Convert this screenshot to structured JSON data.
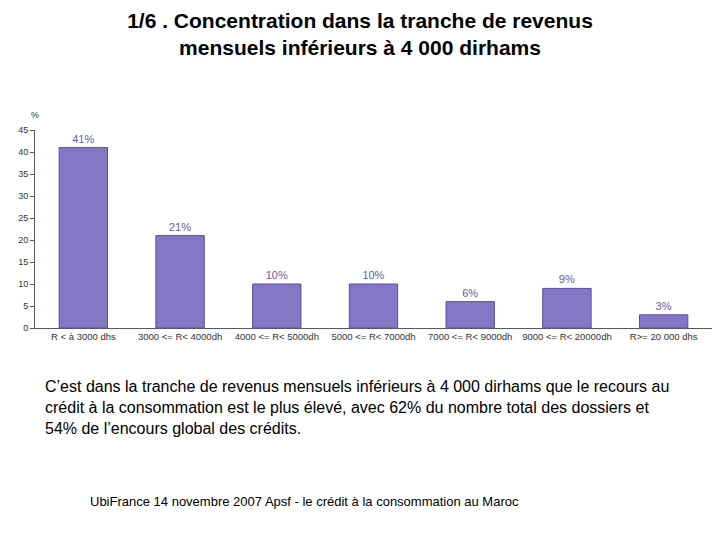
{
  "chart_data": {
    "type": "bar",
    "title": "1/6 . Concentration dans la tranche de revenus\nmensuels inférieurs à 4 000 dirhams",
    "ylabel": "%",
    "categories": [
      "R < à 3000 dhs",
      "3000 <= R< 4000dh",
      "4000 <= R< 5000dh",
      "5000 <= R< 7000dh",
      "7000 <= R< 9000dh",
      "9000 <= R< 20000dh",
      "R>= 20 000 dhs"
    ],
    "values": [
      41,
      21,
      10,
      10,
      6,
      9,
      3
    ],
    "value_labels": [
      "41%",
      "21%",
      "10%",
      "10%",
      "6%",
      "9%",
      "3%"
    ],
    "data_labels": true,
    "color": "#8676c6",
    "ylim": [
      0,
      45
    ],
    "yticks": [
      0,
      5,
      10,
      15,
      20,
      25,
      30,
      35,
      40,
      45
    ],
    "grid": false,
    "caption": "C’est dans la tranche de revenus mensuels inférieurs à 4 000 dirhams que le recours au crédit à la consommation est le plus élevé, avec 62% du nombre total des dossiers et 54% de l’encours global des crédits.",
    "source": "UbiFrance 14 novembre 2007  Apsf - le crédit à la consommation au Maroc"
  }
}
